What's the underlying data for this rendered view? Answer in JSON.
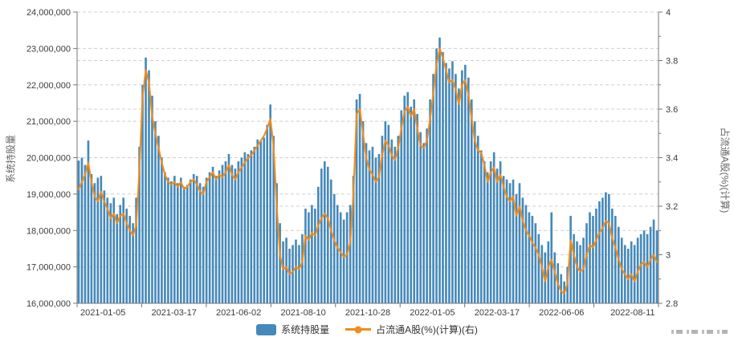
{
  "chart_data": {
    "type": "bar+line",
    "title": "",
    "grid": true,
    "legend_position": "bottom-center",
    "x_axis": {
      "tick_labels": [
        "2021-01-05",
        "2021-03-17",
        "2021-06-02",
        "2021-08-10",
        "2021-10-28",
        "2022-01-05",
        "2022-03-17",
        "2022-06-06",
        "2022-08-11"
      ]
    },
    "left_axis": {
      "title": "系统持股量",
      "min": 16000000,
      "max": 24000000,
      "step": 1000000,
      "tick_labels": [
        "16,000,000",
        "17,000,000",
        "18,000,000",
        "19,000,000",
        "20,000,000",
        "21,000,000",
        "22,000,000",
        "23,000,000",
        "24,000,000"
      ]
    },
    "right_axis": {
      "title": "占流通A股(%)(计算)",
      "min": 2.8,
      "max": 4,
      "step": 0.2,
      "minor_tick_step": 0.1,
      "tick_labels": [
        "2.8",
        "3",
        "3.2",
        "3.4",
        "3.6",
        "3.8",
        "4"
      ]
    },
    "legend": [
      "系统持股量",
      "占流通A股(%)(计算)(右)"
    ],
    "series": [
      {
        "name": "系统持股量",
        "type": "bar",
        "y_axis": "left",
        "color": "#4589ba",
        "unit": "shares",
        "values_millions": [
          19.92,
          20.0,
          19.8,
          20.47,
          19.55,
          19.3,
          19.45,
          19.5,
          19.1,
          18.9,
          18.75,
          18.9,
          18.45,
          18.7,
          18.9,
          18.6,
          18.4,
          18.2,
          18.9,
          20.3,
          22.0,
          22.75,
          22.4,
          21.7,
          21.0,
          20.6,
          20.0,
          19.6,
          19.45,
          19.35,
          19.5,
          19.3,
          19.45,
          19.2,
          19.25,
          19.4,
          19.55,
          19.5,
          19.3,
          19.2,
          19.45,
          19.6,
          19.75,
          19.5,
          19.65,
          19.8,
          19.9,
          20.1,
          19.8,
          19.7,
          19.9,
          20.0,
          20.15,
          20.1,
          20.2,
          20.3,
          20.5,
          20.45,
          20.55,
          20.9,
          21.46,
          20.6,
          19.3,
          18.2,
          17.7,
          17.8,
          17.5,
          17.6,
          17.75,
          17.6,
          17.9,
          18.6,
          18.5,
          18.7,
          18.6,
          19.2,
          19.7,
          19.9,
          19.75,
          19.4,
          19.0,
          18.7,
          18.5,
          18.3,
          18.5,
          18.7,
          19.5,
          21.6,
          21.75,
          21.0,
          20.4,
          20.2,
          20.3,
          20.0,
          20.1,
          20.6,
          21.0,
          20.9,
          20.5,
          20.3,
          20.6,
          21.3,
          21.7,
          21.8,
          21.4,
          21.6,
          21.2,
          20.7,
          20.4,
          20.8,
          21.6,
          22.3,
          23.0,
          23.3,
          22.9,
          22.6,
          22.45,
          22.65,
          22.3,
          21.9,
          22.4,
          22.55,
          22.2,
          21.6,
          21.0,
          20.6,
          20.2,
          19.9,
          19.6,
          19.9,
          20.15,
          19.7,
          19.9,
          19.5,
          19.4,
          19.3,
          19.4,
          19.0,
          19.3,
          18.9,
          18.7,
          18.5,
          18.4,
          18.2,
          17.9,
          17.6,
          17.4,
          17.7,
          18.5,
          17.4,
          17.1,
          16.8,
          16.6,
          17.0,
          18.4,
          17.9,
          17.7,
          17.6,
          17.8,
          18.2,
          18.5,
          18.4,
          18.6,
          18.8,
          18.9,
          19.05,
          19.0,
          18.6,
          18.4,
          18.1,
          17.8,
          17.6,
          17.5,
          17.7,
          17.6,
          17.8,
          17.9,
          18.0,
          17.9,
          18.1,
          18.3,
          18.0
        ]
      },
      {
        "name": "占流通A股(%)(计算)(右)",
        "type": "line",
        "y_axis": "right",
        "color": "#f28c1b",
        "unit": "percent",
        "values": [
          3.27,
          3.3,
          3.33,
          3.38,
          3.3,
          3.24,
          3.22,
          3.26,
          3.22,
          3.19,
          3.15,
          3.17,
          3.13,
          3.16,
          3.17,
          3.13,
          3.1,
          3.08,
          3.12,
          3.35,
          3.65,
          3.76,
          3.71,
          3.57,
          3.5,
          3.44,
          3.38,
          3.33,
          3.3,
          3.29,
          3.3,
          3.28,
          3.3,
          3.27,
          3.28,
          3.3,
          3.31,
          3.29,
          3.26,
          3.25,
          3.3,
          3.32,
          3.34,
          3.31,
          3.33,
          3.32,
          3.34,
          3.37,
          3.33,
          3.31,
          3.34,
          3.36,
          3.38,
          3.4,
          3.41,
          3.43,
          3.45,
          3.47,
          3.49,
          3.52,
          3.56,
          3.45,
          3.2,
          3.0,
          2.94,
          2.95,
          2.92,
          2.93,
          2.95,
          2.94,
          2.97,
          3.08,
          3.06,
          3.09,
          3.08,
          3.12,
          3.15,
          3.17,
          3.15,
          3.1,
          3.06,
          3.03,
          3.01,
          2.99,
          3.0,
          3.05,
          3.25,
          3.58,
          3.6,
          3.5,
          3.4,
          3.35,
          3.33,
          3.3,
          3.32,
          3.41,
          3.47,
          3.45,
          3.41,
          3.39,
          3.44,
          3.52,
          3.59,
          3.61,
          3.57,
          3.6,
          3.52,
          3.45,
          3.44,
          3.47,
          3.56,
          3.66,
          3.78,
          3.85,
          3.81,
          3.76,
          3.71,
          3.72,
          3.68,
          3.62,
          3.7,
          3.72,
          3.66,
          3.56,
          3.47,
          3.43,
          3.42,
          3.37,
          3.3,
          3.34,
          3.36,
          3.3,
          3.33,
          3.28,
          3.24,
          3.22,
          3.24,
          3.16,
          3.2,
          3.14,
          3.1,
          3.08,
          3.05,
          3.03,
          3.0,
          2.95,
          2.89,
          2.95,
          2.98,
          2.93,
          2.88,
          2.85,
          2.84,
          2.88,
          3.06,
          3.0,
          2.95,
          2.93,
          2.94,
          3.0,
          3.04,
          3.03,
          3.06,
          3.09,
          3.11,
          3.14,
          3.13,
          3.07,
          3.03,
          2.98,
          2.94,
          2.92,
          2.9,
          2.92,
          2.89,
          2.93,
          2.96,
          2.97,
          2.95,
          2.98,
          3.0,
          2.97
        ]
      }
    ]
  }
}
